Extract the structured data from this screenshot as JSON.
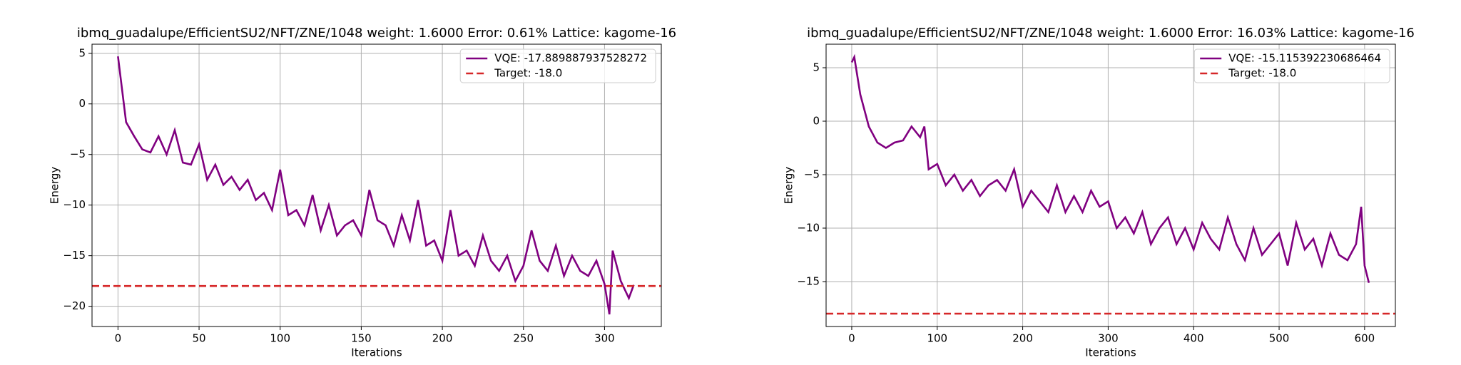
{
  "chart_data": [
    {
      "type": "line",
      "title": "ibmq_guadalupe/EfficientSU2/NFT/ZNE/1048 weight: 1.6000 Error: 0.61% Lattice: kagome-16",
      "xlabel": "Iterations",
      "ylabel": "Energy",
      "x": [
        0,
        5,
        10,
        15,
        20,
        25,
        30,
        35,
        40,
        45,
        50,
        55,
        60,
        65,
        70,
        75,
        80,
        85,
        90,
        95,
        100,
        105,
        110,
        115,
        120,
        125,
        130,
        135,
        140,
        145,
        150,
        155,
        160,
        165,
        170,
        175,
        180,
        185,
        190,
        195,
        200,
        205,
        210,
        215,
        220,
        225,
        230,
        235,
        240,
        245,
        250,
        255,
        260,
        265,
        270,
        275,
        280,
        285,
        290,
        295,
        300,
        303,
        305,
        310,
        315,
        318
      ],
      "series": [
        {
          "name": "VQE: -17.889887937528272",
          "color": "#800080",
          "style": "solid",
          "values": [
            4.7,
            -1.8,
            -3.2,
            -4.5,
            -4.8,
            -3.2,
            -5.0,
            -2.6,
            -5.8,
            -6.0,
            -4.0,
            -7.5,
            -6.0,
            -8.0,
            -7.2,
            -8.5,
            -7.5,
            -9.5,
            -8.8,
            -10.5,
            -6.5,
            -11,
            -10.5,
            -12,
            -9,
            -12.5,
            -10,
            -13,
            -12,
            -11.5,
            -13,
            -8.5,
            -11.5,
            -12,
            -14,
            -11,
            -13.5,
            -9.5,
            -14,
            -13.5,
            -15.5,
            -10.5,
            -15,
            -14.5,
            -16,
            -13,
            -15.5,
            -16.5,
            -15,
            -17.5,
            -16,
            -12.5,
            -15.5,
            -16.5,
            -14,
            -17,
            -15,
            -16.5,
            -17,
            -15.5,
            -17.8,
            -20.8,
            -14.5,
            -17.5,
            -19.2,
            -17.889887937528272
          ]
        },
        {
          "name": "Target: -18.0",
          "color": "#d62728",
          "style": "dashed",
          "hline": -18
        }
      ],
      "xlim": [
        -16,
        335
      ],
      "ylim": [
        -22.0,
        5.9
      ],
      "xticks": [
        0,
        50,
        100,
        150,
        200,
        250,
        300
      ],
      "yticks": [
        5,
        0,
        {
          "value": -5,
          "label": "−5"
        },
        {
          "value": -10,
          "label": "−10"
        },
        {
          "value": -15,
          "label": "−15"
        },
        {
          "value": -20,
          "label": "−20"
        }
      ],
      "grid": true,
      "legend": "upper-right"
    },
    {
      "type": "line",
      "title": "ibmq_guadalupe/EfficientSU2/NFT/ZNE/1048 weight: 1.6000 Error: 16.03% Lattice: kagome-16",
      "xlabel": "Iterations",
      "ylabel": "Energy",
      "x": [
        0,
        3,
        10,
        20,
        30,
        40,
        50,
        60,
        70,
        80,
        85,
        90,
        100,
        110,
        120,
        130,
        140,
        150,
        160,
        170,
        180,
        190,
        200,
        210,
        220,
        230,
        240,
        250,
        260,
        270,
        280,
        290,
        300,
        310,
        320,
        330,
        340,
        350,
        360,
        370,
        380,
        390,
        400,
        410,
        420,
        430,
        440,
        450,
        460,
        470,
        480,
        490,
        500,
        510,
        520,
        530,
        540,
        550,
        560,
        570,
        580,
        590,
        596,
        600,
        605
      ],
      "series": [
        {
          "name": "VQE: -15.115392230686464",
          "color": "#800080",
          "style": "solid",
          "values": [
            5.5,
            6.0,
            2.5,
            -0.5,
            -2.0,
            -2.5,
            -2.0,
            -1.8,
            -0.5,
            -1.5,
            -0.5,
            -4.5,
            -4.0,
            -6,
            -5,
            -6.5,
            -5.5,
            -7,
            -6,
            -5.5,
            -6.5,
            -4.5,
            -8,
            -6.5,
            -7.5,
            -8.5,
            -6,
            -8.5,
            -7,
            -8.5,
            -6.5,
            -8,
            -7.5,
            -10,
            -9,
            -10.5,
            -8.5,
            -11.5,
            -10,
            -9,
            -11.5,
            -10,
            -12,
            -9.5,
            -11,
            -12,
            -9,
            -11.5,
            -13,
            -10,
            -12.5,
            -11.5,
            -10.5,
            -13.5,
            -9.5,
            -12,
            -11,
            -13.5,
            -10.5,
            -12.5,
            -13,
            -11.5,
            -8,
            -13.5,
            -15.115392230686464
          ]
        },
        {
          "name": "Target: -18.0",
          "color": "#d62728",
          "style": "dashed",
          "hline": -18
        }
      ],
      "xlim": [
        -30,
        636
      ],
      "ylim": [
        -19.2,
        7.2
      ],
      "xticks": [
        0,
        100,
        200,
        300,
        400,
        500,
        600
      ],
      "yticks": [
        5,
        0,
        {
          "value": -5,
          "label": "−5"
        },
        {
          "value": -10,
          "label": "−10"
        },
        {
          "value": -15,
          "label": "−15"
        }
      ],
      "grid": true,
      "legend": "upper-right"
    }
  ]
}
